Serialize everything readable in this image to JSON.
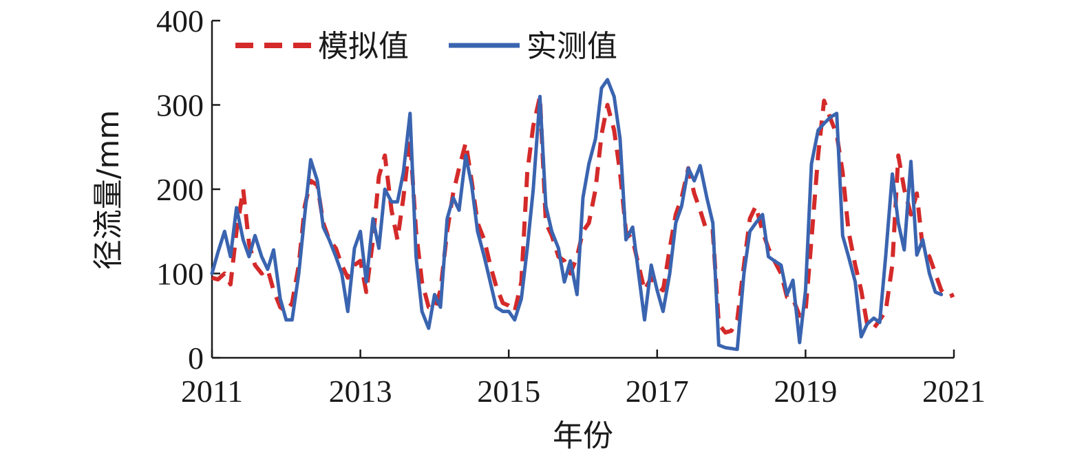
{
  "chart_data": {
    "type": "line",
    "xlabel": "年份",
    "ylabel": "径流量/mm",
    "xlim": [
      2011,
      2021
    ],
    "ylim": [
      0,
      400
    ],
    "x_ticks": [
      2011,
      2013,
      2015,
      2017,
      2019,
      2021
    ],
    "y_ticks": [
      0,
      100,
      200,
      300,
      400
    ],
    "legend_position": "top-left",
    "grid": false,
    "colors": {
      "simulated": "#d42a2a",
      "observed": "#3a64b0",
      "axis": "#1a1a1a"
    },
    "series": [
      {
        "name": "模拟值",
        "style": "dashed",
        "points": [
          [
            2011.0,
            95
          ],
          [
            2011.08,
            93
          ],
          [
            2011.17,
            100
          ],
          [
            2011.25,
            87
          ],
          [
            2011.33,
            150
          ],
          [
            2011.42,
            200
          ],
          [
            2011.5,
            135
          ],
          [
            2011.58,
            110
          ],
          [
            2011.67,
            100
          ],
          [
            2011.75,
            105
          ],
          [
            2011.83,
            80
          ],
          [
            2011.92,
            60
          ],
          [
            2012.0,
            55
          ],
          [
            2012.08,
            65
          ],
          [
            2012.17,
            110
          ],
          [
            2012.25,
            180
          ],
          [
            2012.33,
            210
          ],
          [
            2012.42,
            205
          ],
          [
            2012.5,
            160
          ],
          [
            2012.58,
            140
          ],
          [
            2012.67,
            130
          ],
          [
            2012.75,
            110
          ],
          [
            2012.83,
            95
          ],
          [
            2012.92,
            110
          ],
          [
            2013.0,
            115
          ],
          [
            2013.08,
            78
          ],
          [
            2013.17,
            140
          ],
          [
            2013.25,
            215
          ],
          [
            2013.33,
            240
          ],
          [
            2013.42,
            175
          ],
          [
            2013.5,
            140
          ],
          [
            2013.58,
            190
          ],
          [
            2013.67,
            260
          ],
          [
            2013.75,
            150
          ],
          [
            2013.83,
            90
          ],
          [
            2013.92,
            60
          ],
          [
            2014.0,
            58
          ],
          [
            2014.08,
            80
          ],
          [
            2014.17,
            150
          ],
          [
            2014.25,
            195
          ],
          [
            2014.33,
            225
          ],
          [
            2014.42,
            255
          ],
          [
            2014.5,
            210
          ],
          [
            2014.58,
            160
          ],
          [
            2014.67,
            140
          ],
          [
            2014.75,
            110
          ],
          [
            2014.83,
            85
          ],
          [
            2014.92,
            65
          ],
          [
            2015.0,
            62
          ],
          [
            2015.08,
            55
          ],
          [
            2015.17,
            90
          ],
          [
            2015.25,
            220
          ],
          [
            2015.33,
            275
          ],
          [
            2015.42,
            310
          ],
          [
            2015.5,
            160
          ],
          [
            2015.58,
            145
          ],
          [
            2015.67,
            120
          ],
          [
            2015.75,
            115
          ],
          [
            2015.83,
            100
          ],
          [
            2015.92,
            120
          ],
          [
            2016.0,
            150
          ],
          [
            2016.08,
            160
          ],
          [
            2016.17,
            200
          ],
          [
            2016.25,
            265
          ],
          [
            2016.33,
            300
          ],
          [
            2016.42,
            270
          ],
          [
            2016.5,
            220
          ],
          [
            2016.58,
            150
          ],
          [
            2016.67,
            140
          ],
          [
            2016.75,
            110
          ],
          [
            2016.83,
            80
          ],
          [
            2016.92,
            95
          ],
          [
            2017.0,
            85
          ],
          [
            2017.08,
            80
          ],
          [
            2017.17,
            130
          ],
          [
            2017.25,
            170
          ],
          [
            2017.33,
            190
          ],
          [
            2017.42,
            225
          ],
          [
            2017.5,
            195
          ],
          [
            2017.58,
            175
          ],
          [
            2017.67,
            150
          ],
          [
            2017.75,
            150
          ],
          [
            2017.83,
            40
          ],
          [
            2017.92,
            30
          ],
          [
            2018.0,
            32
          ],
          [
            2018.08,
            45
          ],
          [
            2018.17,
            110
          ],
          [
            2018.25,
            165
          ],
          [
            2018.33,
            180
          ],
          [
            2018.42,
            150
          ],
          [
            2018.5,
            130
          ],
          [
            2018.58,
            115
          ],
          [
            2018.67,
            100
          ],
          [
            2018.75,
            72
          ],
          [
            2018.83,
            70
          ],
          [
            2018.92,
            50
          ],
          [
            2019.0,
            55
          ],
          [
            2019.08,
            140
          ],
          [
            2019.17,
            240
          ],
          [
            2019.25,
            305
          ],
          [
            2019.33,
            285
          ],
          [
            2019.42,
            265
          ],
          [
            2019.5,
            220
          ],
          [
            2019.58,
            150
          ],
          [
            2019.67,
            110
          ],
          [
            2019.75,
            80
          ],
          [
            2019.83,
            40
          ],
          [
            2019.92,
            35
          ],
          [
            2020.0,
            45
          ],
          [
            2020.08,
            55
          ],
          [
            2020.17,
            110
          ],
          [
            2020.25,
            240
          ],
          [
            2020.33,
            200
          ],
          [
            2020.42,
            170
          ],
          [
            2020.5,
            195
          ],
          [
            2020.58,
            130
          ],
          [
            2020.67,
            120
          ],
          [
            2020.75,
            100
          ],
          [
            2020.83,
            80
          ],
          [
            2020.92,
            72
          ],
          [
            2021.0,
            75
          ]
        ]
      },
      {
        "name": "实测值",
        "style": "solid",
        "points": [
          [
            2011.0,
            100
          ],
          [
            2011.08,
            125
          ],
          [
            2011.17,
            150
          ],
          [
            2011.25,
            120
          ],
          [
            2011.33,
            178
          ],
          [
            2011.42,
            140
          ],
          [
            2011.5,
            120
          ],
          [
            2011.58,
            145
          ],
          [
            2011.67,
            120
          ],
          [
            2011.75,
            105
          ],
          [
            2011.83,
            128
          ],
          [
            2011.92,
            70
          ],
          [
            2012.0,
            45
          ],
          [
            2012.08,
            45
          ],
          [
            2012.17,
            100
          ],
          [
            2012.25,
            170
          ],
          [
            2012.33,
            235
          ],
          [
            2012.42,
            210
          ],
          [
            2012.5,
            155
          ],
          [
            2012.58,
            140
          ],
          [
            2012.67,
            120
          ],
          [
            2012.75,
            100
          ],
          [
            2012.83,
            55
          ],
          [
            2012.92,
            130
          ],
          [
            2013.0,
            150
          ],
          [
            2013.08,
            90
          ],
          [
            2013.17,
            165
          ],
          [
            2013.25,
            130
          ],
          [
            2013.33,
            200
          ],
          [
            2013.42,
            185
          ],
          [
            2013.5,
            185
          ],
          [
            2013.58,
            220
          ],
          [
            2013.67,
            290
          ],
          [
            2013.75,
            120
          ],
          [
            2013.83,
            55
          ],
          [
            2013.92,
            35
          ],
          [
            2014.0,
            75
          ],
          [
            2014.08,
            60
          ],
          [
            2014.17,
            165
          ],
          [
            2014.25,
            190
          ],
          [
            2014.33,
            175
          ],
          [
            2014.42,
            240
          ],
          [
            2014.5,
            205
          ],
          [
            2014.58,
            150
          ],
          [
            2014.67,
            120
          ],
          [
            2014.75,
            90
          ],
          [
            2014.83,
            60
          ],
          [
            2014.92,
            55
          ],
          [
            2015.0,
            55
          ],
          [
            2015.08,
            45
          ],
          [
            2015.17,
            70
          ],
          [
            2015.25,
            130
          ],
          [
            2015.33,
            200
          ],
          [
            2015.42,
            310
          ],
          [
            2015.5,
            180
          ],
          [
            2015.58,
            150
          ],
          [
            2015.67,
            130
          ],
          [
            2015.75,
            90
          ],
          [
            2015.83,
            115
          ],
          [
            2015.92,
            75
          ],
          [
            2016.0,
            190
          ],
          [
            2016.08,
            230
          ],
          [
            2016.17,
            260
          ],
          [
            2016.25,
            320
          ],
          [
            2016.33,
            330
          ],
          [
            2016.42,
            310
          ],
          [
            2016.5,
            260
          ],
          [
            2016.58,
            140
          ],
          [
            2016.67,
            155
          ],
          [
            2016.75,
            100
          ],
          [
            2016.83,
            45
          ],
          [
            2016.92,
            110
          ],
          [
            2017.0,
            80
          ],
          [
            2017.08,
            55
          ],
          [
            2017.17,
            100
          ],
          [
            2017.25,
            160
          ],
          [
            2017.33,
            180
          ],
          [
            2017.42,
            225
          ],
          [
            2017.5,
            210
          ],
          [
            2017.58,
            228
          ],
          [
            2017.67,
            190
          ],
          [
            2017.75,
            160
          ],
          [
            2017.83,
            15
          ],
          [
            2017.92,
            12
          ],
          [
            2018.0,
            11
          ],
          [
            2018.08,
            10
          ],
          [
            2018.17,
            100
          ],
          [
            2018.25,
            150
          ],
          [
            2018.33,
            160
          ],
          [
            2018.42,
            170
          ],
          [
            2018.5,
            120
          ],
          [
            2018.58,
            115
          ],
          [
            2018.67,
            110
          ],
          [
            2018.75,
            75
          ],
          [
            2018.83,
            92
          ],
          [
            2018.92,
            18
          ],
          [
            2019.0,
            80
          ],
          [
            2019.08,
            230
          ],
          [
            2019.17,
            270
          ],
          [
            2019.25,
            278
          ],
          [
            2019.33,
            285
          ],
          [
            2019.42,
            290
          ],
          [
            2019.5,
            145
          ],
          [
            2019.58,
            120
          ],
          [
            2019.67,
            90
          ],
          [
            2019.75,
            25
          ],
          [
            2019.83,
            40
          ],
          [
            2019.92,
            47
          ],
          [
            2020.0,
            42
          ],
          [
            2020.08,
            120
          ],
          [
            2020.17,
            218
          ],
          [
            2020.25,
            160
          ],
          [
            2020.33,
            128
          ],
          [
            2020.42,
            233
          ],
          [
            2020.5,
            122
          ],
          [
            2020.58,
            140
          ],
          [
            2020.67,
            100
          ],
          [
            2020.75,
            78
          ],
          [
            2020.83,
            75
          ]
        ]
      }
    ]
  }
}
